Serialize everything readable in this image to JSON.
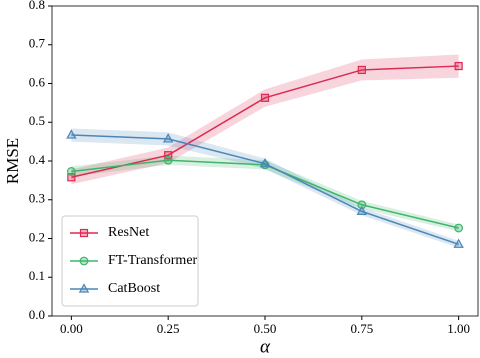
{
  "chart_data": {
    "type": "line",
    "xlabel": "α",
    "ylabel": "RMSE",
    "x": [
      0,
      0.25,
      0.5,
      0.75,
      1.0
    ],
    "series": [
      {
        "name": "ResNet",
        "color": "#dc2a52",
        "marker": "square",
        "values": [
          0.358,
          0.415,
          0.563,
          0.635,
          0.645
        ],
        "lower": [
          0.34,
          0.395,
          0.54,
          0.608,
          0.615
        ],
        "upper": [
          0.378,
          0.435,
          0.585,
          0.662,
          0.675
        ]
      },
      {
        "name": "FT-Transformer",
        "color": "#3db56a",
        "marker": "circle",
        "values": [
          0.373,
          0.402,
          0.39,
          0.287,
          0.227
        ],
        "lower": [
          0.36,
          0.39,
          0.378,
          0.277,
          0.218
        ],
        "upper": [
          0.386,
          0.414,
          0.402,
          0.297,
          0.236
        ]
      },
      {
        "name": "CatBoost",
        "color": "#4a86b8",
        "marker": "triangle",
        "values": [
          0.467,
          0.457,
          0.393,
          0.27,
          0.185
        ],
        "lower": [
          0.45,
          0.44,
          0.38,
          0.26,
          0.176
        ],
        "upper": [
          0.484,
          0.474,
          0.406,
          0.28,
          0.194
        ]
      }
    ],
    "xlim": [
      -0.05,
      1.05
    ],
    "ylim": [
      0,
      0.8
    ],
    "xticks": [
      {
        "value": 0,
        "label": "0.00"
      },
      0.25,
      {
        "value": 0.5,
        "label": "0.50"
      },
      0.75,
      {
        "value": 1.0,
        "label": "1.00"
      }
    ],
    "yticks": [
      {
        "value": 0,
        "label": "0.0"
      },
      0.1,
      0.2,
      0.3,
      0.4,
      0.5,
      0.6,
      0.7,
      0.8
    ],
    "legend": "lower left"
  }
}
